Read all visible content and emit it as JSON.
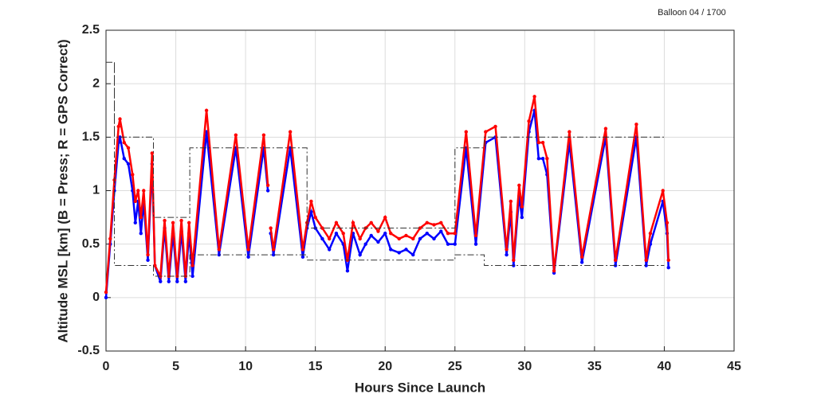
{
  "chart_data": {
    "type": "line",
    "title": "Balloon 04 / 1700",
    "x_label": "Hours Since Launch",
    "y_label": "Altitude MSL [km]   (B = Press; R = GPS Correct)",
    "xlim": [
      0,
      45
    ],
    "ylim": [
      -0.5,
      2.5
    ],
    "xticks": [
      0,
      5,
      10,
      15,
      20,
      25,
      30,
      35,
      40,
      45
    ],
    "yticks": [
      -0.5,
      0,
      0.5,
      1,
      1.5,
      2,
      2.5
    ],
    "grid": true,
    "series": [
      {
        "color": "#0000ff",
        "style": "solid",
        "markers": true,
        "x": [
          0,
          0.3,
          0.6,
          0.9,
          1.0,
          1.3,
          1.6,
          1.9,
          2.1,
          2.3,
          2.5,
          2.7,
          3.0,
          3.3,
          3.5,
          3.9,
          4.2,
          4.5,
          4.8,
          5.1,
          5.4,
          5.7,
          5.95,
          6.2,
          7.2,
          8.1,
          9.3,
          10.2,
          11.3,
          11.6,
          11.7,
          11.8,
          12.0,
          13.2,
          14.1,
          14.4,
          14.7,
          15.0,
          15.5,
          16.0,
          16.5,
          17.0,
          17.3,
          17.7,
          18.2,
          18.6,
          19.0,
          19.5,
          20.0,
          20.4,
          21.0,
          21.5,
          22.0,
          22.5,
          23.0,
          23.5,
          24.0,
          24.5,
          25.0,
          25.8,
          26.5,
          27.2,
          27.9,
          28.7,
          29.0,
          29.2,
          29.6,
          29.8,
          30.3,
          30.7,
          31.0,
          31.3,
          31.6,
          32.1,
          33.2,
          34.1,
          35.8,
          36.5,
          38.0,
          38.7,
          39.0,
          39.9,
          40.2,
          40.3
        ],
        "values": [
          0,
          0.5,
          1.0,
          1.45,
          1.5,
          1.3,
          1.25,
          1.0,
          0.7,
          0.9,
          0.6,
          0.9,
          0.35,
          1.25,
          0.3,
          0.15,
          0.65,
          0.15,
          0.6,
          0.15,
          0.62,
          0.15,
          0.6,
          0.2,
          1.55,
          0.4,
          1.4,
          0.38,
          1.4,
          1.0,
          null,
          0.6,
          0.4,
          1.4,
          0.38,
          0.65,
          0.8,
          0.65,
          0.55,
          0.45,
          0.6,
          0.5,
          0.25,
          0.6,
          0.4,
          0.5,
          0.58,
          0.52,
          0.6,
          0.45,
          0.42,
          0.45,
          0.4,
          0.55,
          0.6,
          0.55,
          0.62,
          0.5,
          0.5,
          1.4,
          0.5,
          1.45,
          1.5,
          0.4,
          0.8,
          0.3,
          0.95,
          0.75,
          1.55,
          1.75,
          1.3,
          1.3,
          1.15,
          0.23,
          1.45,
          0.33,
          1.5,
          0.3,
          1.5,
          0.3,
          0.5,
          0.9,
          0.6,
          0.28
        ]
      },
      {
        "color": "#ff0000",
        "style": "solid",
        "markers": true,
        "x": [
          0,
          0.3,
          0.6,
          0.9,
          1.0,
          1.3,
          1.6,
          1.9,
          2.1,
          2.3,
          2.5,
          2.7,
          3.0,
          3.3,
          3.5,
          3.9,
          4.2,
          4.5,
          4.8,
          5.1,
          5.4,
          5.7,
          5.95,
          6.2,
          7.2,
          8.1,
          9.3,
          10.2,
          11.3,
          11.6,
          11.7,
          11.8,
          12.0,
          13.2,
          14.1,
          14.4,
          14.7,
          15.0,
          15.5,
          16.0,
          16.5,
          17.0,
          17.3,
          17.7,
          18.2,
          18.6,
          19.0,
          19.5,
          20.0,
          20.4,
          21.0,
          21.5,
          22.0,
          22.5,
          23.0,
          23.5,
          24.0,
          24.5,
          25.0,
          25.8,
          26.5,
          27.2,
          27.9,
          28.7,
          29.0,
          29.2,
          29.6,
          29.8,
          30.3,
          30.7,
          31.0,
          31.3,
          31.6,
          32.1,
          33.2,
          34.1,
          35.8,
          36.5,
          38.0,
          38.7,
          39.0,
          39.9,
          40.2,
          40.3
        ],
        "values": [
          0.05,
          0.55,
          1.1,
          1.6,
          1.67,
          1.45,
          1.4,
          1.15,
          0.9,
          1.0,
          0.75,
          1.0,
          0.4,
          1.35,
          0.3,
          0.2,
          0.72,
          0.2,
          0.7,
          0.2,
          0.72,
          0.2,
          0.7,
          0.3,
          1.75,
          0.45,
          1.52,
          0.45,
          1.52,
          1.05,
          null,
          0.65,
          0.45,
          1.55,
          0.45,
          0.7,
          0.9,
          0.75,
          0.65,
          0.55,
          0.7,
          0.6,
          0.35,
          0.7,
          0.55,
          0.65,
          0.7,
          0.62,
          0.75,
          0.6,
          0.55,
          0.58,
          0.55,
          0.65,
          0.7,
          0.68,
          0.7,
          0.6,
          0.6,
          1.55,
          0.58,
          1.55,
          1.6,
          0.45,
          0.9,
          0.35,
          1.05,
          0.85,
          1.65,
          1.88,
          1.45,
          1.45,
          1.3,
          0.25,
          1.55,
          0.38,
          1.58,
          0.35,
          1.62,
          0.35,
          0.6,
          1.0,
          0.7,
          0.35
        ]
      },
      {
        "color": "#333333",
        "style": "dashdot",
        "markers": false,
        "x": [
          0,
          0.6,
          0.6,
          3.4,
          3.4,
          6,
          6,
          14.4,
          14.4,
          25,
          25,
          27.1,
          27.1,
          40
        ],
        "values": [
          2.2,
          2.2,
          1.5,
          1.5,
          0.75,
          0.75,
          1.4,
          1.4,
          0.65,
          0.65,
          1.4,
          1.4,
          1.5,
          1.5
        ]
      },
      {
        "color": "#333333",
        "style": "dashdot",
        "markers": false,
        "x": [
          0.6,
          0.6,
          3.4,
          3.4,
          6,
          6,
          14.4,
          14.4,
          25,
          25,
          27.1,
          27.1,
          40
        ],
        "values": [
          2.2,
          0.3,
          0.3,
          0.2,
          0.2,
          0.4,
          0.4,
          0.35,
          0.35,
          0.4,
          0.4,
          0.3,
          0.3
        ]
      }
    ]
  }
}
